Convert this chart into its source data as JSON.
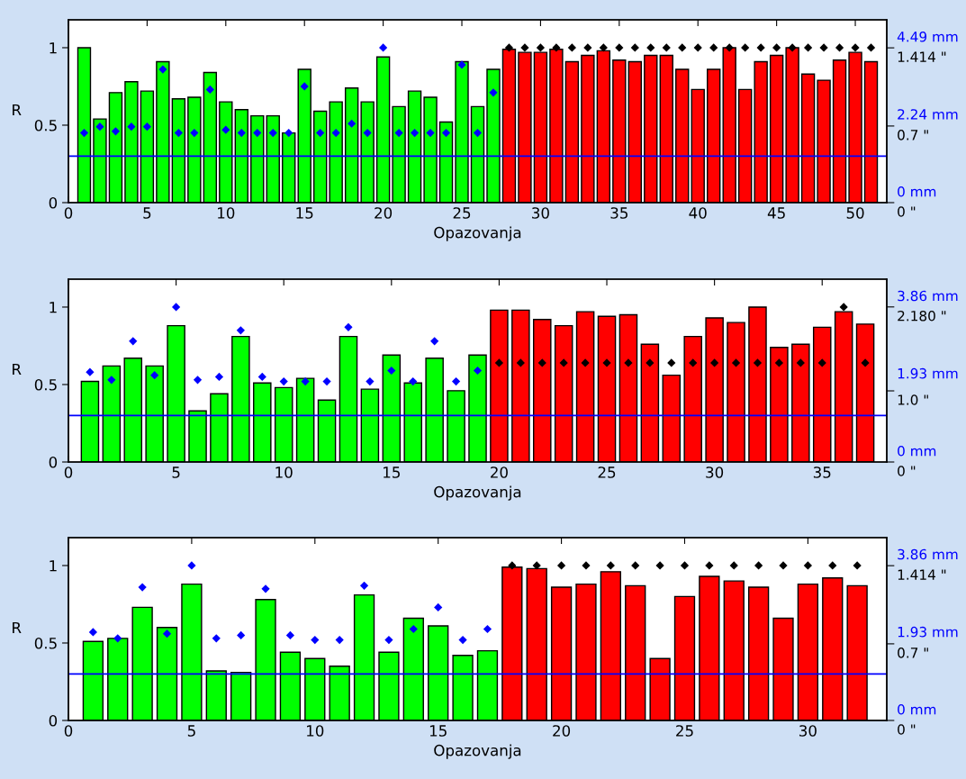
{
  "chart_data": [
    {
      "type": "bar",
      "xlabel": "Opazovanja",
      "ylabel": "R",
      "xlim": [
        0,
        52
      ],
      "xticks": [
        0,
        5,
        10,
        15,
        20,
        25,
        30,
        35,
        40,
        45,
        50
      ],
      "ylim": [
        0,
        1.18
      ],
      "yticks": [
        0,
        0.5,
        1
      ],
      "y2lim": [
        0,
        1.67
      ],
      "y2ticks": [
        {
          "value": 0,
          "label": "0 \""
        },
        {
          "value": 0.7,
          "label": "0.7 \""
        },
        {
          "value": 1.414,
          "label": "1.414 \""
        }
      ],
      "y3lim": [
        0,
        5.3
      ],
      "y3ticks": [
        {
          "value": 0,
          "label": "0 mm"
        },
        {
          "value": 2.24,
          "label": "2.24 mm"
        },
        {
          "value": 4.49,
          "label": "4.49 mm"
        }
      ],
      "marker": "diamond",
      "grid": false,
      "legend": false,
      "ref_lines": [
        {
          "axis": "y",
          "value": 0.3,
          "color": "#0000ff"
        }
      ],
      "series": [
        {
          "x": [
            1,
            2,
            3,
            4,
            5,
            6,
            7,
            8,
            9,
            10,
            11,
            12,
            13,
            14,
            15,
            16,
            17,
            18,
            19,
            20,
            21,
            22,
            23,
            24,
            25,
            26,
            27,
            28,
            29,
            30,
            31,
            32,
            33,
            34,
            35,
            36,
            37,
            38,
            39,
            40,
            41,
            42,
            43,
            44,
            45,
            46,
            47,
            48,
            49,
            50,
            51
          ],
          "values": [
            1.0,
            0.54,
            0.71,
            0.78,
            0.72,
            0.91,
            0.67,
            0.68,
            0.84,
            0.65,
            0.6,
            0.56,
            0.56,
            0.45,
            0.86,
            0.59,
            0.65,
            0.74,
            0.65,
            0.94,
            0.62,
            0.72,
            0.68,
            0.52,
            0.91,
            0.62,
            0.86,
            0.99,
            0.97,
            0.97,
            0.99,
            0.91,
            0.95,
            0.98,
            0.92,
            0.91,
            0.95,
            0.95,
            0.86,
            0.73,
            0.86,
            1.0,
            0.73,
            0.91,
            0.95,
            1.0,
            0.83,
            0.79,
            0.92,
            0.97,
            0.91
          ],
          "colors": [
            "#00ff00",
            "#00ff00",
            "#00ff00",
            "#00ff00",
            "#00ff00",
            "#00ff00",
            "#00ff00",
            "#00ff00",
            "#00ff00",
            "#00ff00",
            "#00ff00",
            "#00ff00",
            "#00ff00",
            "#00ff00",
            "#00ff00",
            "#00ff00",
            "#00ff00",
            "#00ff00",
            "#00ff00",
            "#00ff00",
            "#00ff00",
            "#00ff00",
            "#00ff00",
            "#00ff00",
            "#00ff00",
            "#00ff00",
            "#00ff00",
            "#ff0000",
            "#ff0000",
            "#ff0000",
            "#ff0000",
            "#ff0000",
            "#ff0000",
            "#ff0000",
            "#ff0000",
            "#ff0000",
            "#ff0000",
            "#ff0000",
            "#ff0000",
            "#ff0000",
            "#ff0000",
            "#ff0000",
            "#ff0000",
            "#ff0000",
            "#ff0000",
            "#ff0000",
            "#ff0000",
            "#ff0000",
            "#ff0000",
            "#ff0000",
            "#ff0000"
          ]
        },
        {
          "type": "scatter",
          "color": "#0000ff",
          "x": [
            1,
            2,
            3,
            4,
            5,
            6,
            7,
            8,
            9,
            10,
            11,
            12,
            13,
            14,
            15,
            16,
            17,
            18,
            19,
            20,
            21,
            22,
            23,
            24,
            25,
            26,
            27
          ],
          "values": [
            0.45,
            0.49,
            0.46,
            0.49,
            0.49,
            0.86,
            0.45,
            0.45,
            0.73,
            0.47,
            0.45,
            0.45,
            0.45,
            0.45,
            0.75,
            0.45,
            0.45,
            0.51,
            0.45,
            1.0,
            0.45,
            0.45,
            0.45,
            0.45,
            0.89,
            0.45,
            0.71
          ]
        },
        {
          "type": "scatter",
          "color": "#000000",
          "x": [
            28,
            29,
            30,
            31,
            32,
            33,
            34,
            35,
            36,
            37,
            38,
            39,
            40,
            41,
            42,
            43,
            44,
            45,
            46,
            47,
            48,
            49,
            50,
            51
          ],
          "values": [
            1.0,
            1.0,
            1.0,
            1.0,
            1.0,
            1.0,
            1.0,
            1.0,
            1.0,
            1.0,
            1.0,
            1.0,
            1.0,
            1.0,
            1.0,
            1.0,
            1.0,
            1.0,
            1.0,
            1.0,
            1.0,
            1.0,
            1.0,
            1.0
          ]
        }
      ]
    },
    {
      "type": "bar",
      "xlabel": "Opazovanja",
      "ylabel": "R",
      "xlim": [
        0,
        38
      ],
      "xticks": [
        0,
        5,
        10,
        15,
        20,
        25,
        30,
        35
      ],
      "ylim": [
        0,
        1.18
      ],
      "yticks": [
        0,
        0.5,
        1
      ],
      "y2lim": [
        0,
        2.57
      ],
      "y2ticks": [
        {
          "value": 0,
          "label": "0 \""
        },
        {
          "value": 1.0,
          "label": "1.0 \""
        },
        {
          "value": 2.18,
          "label": "2.180 \""
        }
      ],
      "y3lim": [
        0,
        4.55
      ],
      "y3ticks": [
        {
          "value": 0,
          "label": "0 mm"
        },
        {
          "value": 1.93,
          "label": "1.93 mm"
        },
        {
          "value": 3.86,
          "label": "3.86 mm"
        }
      ],
      "marker": "diamond",
      "grid": false,
      "legend": false,
      "ref_lines": [
        {
          "axis": "y",
          "value": 0.3,
          "color": "#0000ff"
        }
      ],
      "series": [
        {
          "x": [
            1,
            2,
            3,
            4,
            5,
            6,
            7,
            8,
            9,
            10,
            11,
            12,
            13,
            14,
            15,
            16,
            17,
            18,
            19,
            20,
            21,
            22,
            23,
            24,
            25,
            26,
            27,
            28,
            29,
            30,
            31,
            32,
            33,
            34,
            35,
            36,
            37
          ],
          "values": [
            0.52,
            0.62,
            0.67,
            0.62,
            0.88,
            0.33,
            0.44,
            0.81,
            0.51,
            0.48,
            0.54,
            0.4,
            0.81,
            0.47,
            0.69,
            0.51,
            0.67,
            0.46,
            0.69,
            0.98,
            0.98,
            0.92,
            0.88,
            0.97,
            0.94,
            0.95,
            0.76,
            0.56,
            0.81,
            0.93,
            0.9,
            1.0,
            0.74,
            0.76,
            0.87,
            0.97,
            0.89
          ],
          "colors": [
            "#00ff00",
            "#00ff00",
            "#00ff00",
            "#00ff00",
            "#00ff00",
            "#00ff00",
            "#00ff00",
            "#00ff00",
            "#00ff00",
            "#00ff00",
            "#00ff00",
            "#00ff00",
            "#00ff00",
            "#00ff00",
            "#00ff00",
            "#00ff00",
            "#00ff00",
            "#00ff00",
            "#00ff00",
            "#ff0000",
            "#ff0000",
            "#ff0000",
            "#ff0000",
            "#ff0000",
            "#ff0000",
            "#ff0000",
            "#ff0000",
            "#ff0000",
            "#ff0000",
            "#ff0000",
            "#ff0000",
            "#ff0000",
            "#ff0000",
            "#ff0000",
            "#ff0000",
            "#ff0000",
            "#ff0000"
          ]
        },
        {
          "type": "scatter",
          "color": "#0000ff",
          "x": [
            1,
            2,
            3,
            4,
            5,
            6,
            7,
            8,
            9,
            10,
            11,
            12,
            13,
            14,
            15,
            16,
            17,
            18,
            19
          ],
          "values": [
            0.58,
            0.53,
            0.78,
            0.56,
            1.0,
            0.53,
            0.55,
            0.85,
            0.55,
            0.52,
            0.52,
            0.52,
            0.87,
            0.52,
            0.59,
            0.52,
            0.78,
            0.52,
            0.59
          ]
        },
        {
          "type": "scatter",
          "color": "#000000",
          "x": [
            20,
            21,
            22,
            23,
            24,
            25,
            26,
            27,
            28,
            29,
            30,
            31,
            32,
            33,
            34,
            35,
            36,
            37
          ],
          "values": [
            0.64,
            0.64,
            0.64,
            0.64,
            0.64,
            0.64,
            0.64,
            0.64,
            0.64,
            0.64,
            0.64,
            0.64,
            0.64,
            0.64,
            0.64,
            0.64,
            1.0,
            0.64
          ]
        }
      ]
    },
    {
      "type": "bar",
      "xlabel": "Opazovanja",
      "ylabel": "R",
      "xlim": [
        0,
        33.2
      ],
      "xticks": [
        0,
        5,
        10,
        15,
        20,
        25,
        30
      ],
      "ylim": [
        0,
        1.18
      ],
      "yticks": [
        0,
        0.5,
        1
      ],
      "y2lim": [
        0,
        1.67
      ],
      "y2ticks": [
        {
          "value": 0,
          "label": "0 \""
        },
        {
          "value": 0.7,
          "label": "0.7 \""
        },
        {
          "value": 1.414,
          "label": "1.414 \""
        }
      ],
      "y3lim": [
        0,
        4.55
      ],
      "y3ticks": [
        {
          "value": 0,
          "label": "0 mm"
        },
        {
          "value": 1.93,
          "label": "1.93 mm"
        },
        {
          "value": 3.86,
          "label": "3.86 mm"
        }
      ],
      "marker": "diamond",
      "grid": false,
      "legend": false,
      "ref_lines": [
        {
          "axis": "y",
          "value": 0.3,
          "color": "#0000ff"
        }
      ],
      "series": [
        {
          "x": [
            1,
            2,
            3,
            4,
            5,
            6,
            7,
            8,
            9,
            10,
            11,
            12,
            13,
            14,
            15,
            16,
            17,
            18,
            19,
            20,
            21,
            22,
            23,
            24,
            25,
            26,
            27,
            28,
            29,
            30,
            31,
            32
          ],
          "values": [
            0.51,
            0.53,
            0.73,
            0.6,
            0.88,
            0.32,
            0.31,
            0.78,
            0.44,
            0.4,
            0.35,
            0.81,
            0.44,
            0.66,
            0.61,
            0.42,
            0.45,
            0.99,
            0.98,
            0.86,
            0.88,
            0.96,
            0.87,
            0.4,
            0.8,
            0.93,
            0.9,
            0.86,
            0.66,
            0.88,
            0.92,
            0.87
          ],
          "colors": [
            "#00ff00",
            "#00ff00",
            "#00ff00",
            "#00ff00",
            "#00ff00",
            "#00ff00",
            "#00ff00",
            "#00ff00",
            "#00ff00",
            "#00ff00",
            "#00ff00",
            "#00ff00",
            "#00ff00",
            "#00ff00",
            "#00ff00",
            "#00ff00",
            "#00ff00",
            "#ff0000",
            "#ff0000",
            "#ff0000",
            "#ff0000",
            "#ff0000",
            "#ff0000",
            "#ff0000",
            "#ff0000",
            "#ff0000",
            "#ff0000",
            "#ff0000",
            "#ff0000",
            "#ff0000",
            "#ff0000",
            "#ff0000"
          ]
        },
        {
          "type": "scatter",
          "color": "#0000ff",
          "x": [
            1,
            2,
            3,
            4,
            5,
            6,
            7,
            8,
            9,
            10,
            11,
            12,
            13,
            14,
            15,
            16,
            17
          ],
          "values": [
            0.57,
            0.53,
            0.86,
            0.56,
            1.0,
            0.53,
            0.55,
            0.85,
            0.55,
            0.52,
            0.52,
            0.87,
            0.52,
            0.59,
            0.73,
            0.52,
            0.59
          ]
        },
        {
          "type": "scatter",
          "color": "#000000",
          "x": [
            18,
            19,
            20,
            21,
            22,
            23,
            24,
            25,
            26,
            27,
            28,
            29,
            30,
            31,
            32
          ],
          "values": [
            1.0,
            1.0,
            1.0,
            1.0,
            1.0,
            1.0,
            1.0,
            1.0,
            1.0,
            1.0,
            1.0,
            1.0,
            1.0,
            1.0,
            1.0
          ]
        }
      ]
    }
  ]
}
